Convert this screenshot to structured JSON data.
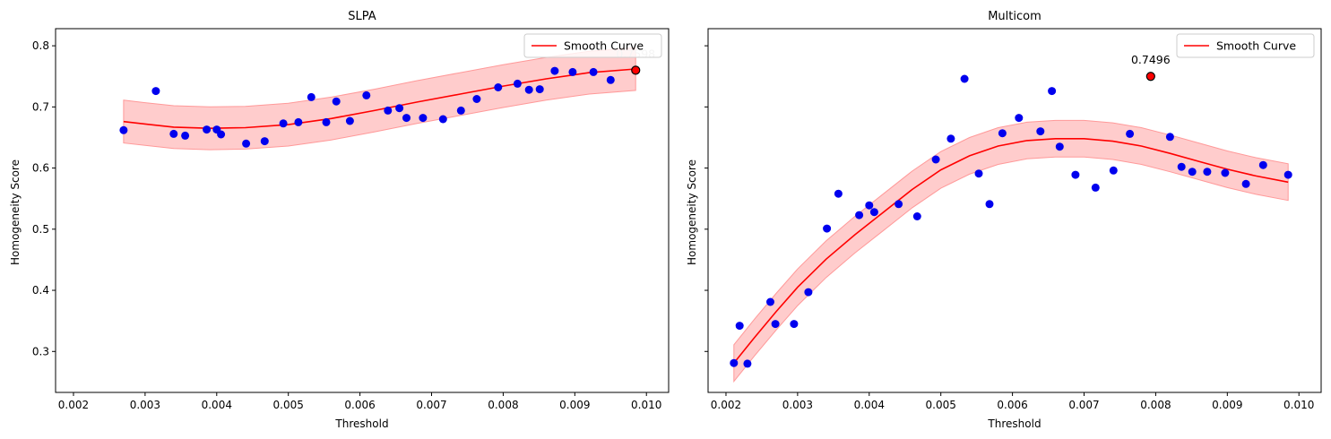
{
  "chart_data": [
    {
      "type": "scatter",
      "title": "SLPA",
      "xlabel": "Threshold",
      "ylabel": "Homogeneity Score",
      "xlim": [
        0.00175,
        0.01031
      ],
      "ylim": [
        0.233,
        0.828
      ],
      "xticks": [
        "0.002",
        "0.003",
        "0.004",
        "0.005",
        "0.006",
        "0.007",
        "0.008",
        "0.009",
        "0.010"
      ],
      "xtick_values": [
        0.002,
        0.003,
        0.004,
        0.005,
        0.006,
        0.007,
        0.008,
        0.009,
        0.01
      ],
      "yticks": [
        "0.3",
        "0.4",
        "0.5",
        "0.6",
        "0.7",
        "0.8"
      ],
      "ytick_values": [
        0.3,
        0.4,
        0.5,
        0.6,
        0.7,
        0.8
      ],
      "points": {
        "x": [
          0.0027,
          0.00315,
          0.0034,
          0.00356,
          0.00386,
          0.004,
          0.00406,
          0.00441,
          0.00467,
          0.00493,
          0.00514,
          0.00532,
          0.00553,
          0.00567,
          0.00586,
          0.00609,
          0.00639,
          0.00655,
          0.00665,
          0.00688,
          0.00716,
          0.00741,
          0.00763,
          0.00793,
          0.0082,
          0.00836,
          0.00851,
          0.00872,
          0.00897,
          0.00926,
          0.0095,
          0.00985
        ],
        "y": [
          0.662,
          0.726,
          0.656,
          0.653,
          0.663,
          0.663,
          0.655,
          0.64,
          0.644,
          0.673,
          0.675,
          0.716,
          0.675,
          0.709,
          0.677,
          0.719,
          0.694,
          0.698,
          0.682,
          0.682,
          0.68,
          0.694,
          0.713,
          0.732,
          0.738,
          0.728,
          0.729,
          0.759,
          0.757,
          0.757,
          0.744,
          0.76
        ]
      },
      "point_color": "#0000ee",
      "smooth": {
        "name": "Smooth Curve",
        "color": "#ff0000",
        "band_color": "#ff9999",
        "band_halfwidth": 0.035,
        "x": [
          0.0027,
          0.003,
          0.0034,
          0.0039,
          0.0044,
          0.005,
          0.0056,
          0.0062,
          0.0068,
          0.0074,
          0.008,
          0.0086,
          0.0092,
          0.00985
        ],
        "y": [
          0.676,
          0.672,
          0.667,
          0.665,
          0.666,
          0.671,
          0.681,
          0.694,
          0.708,
          0.721,
          0.734,
          0.746,
          0.756,
          0.762
        ]
      },
      "highlight": {
        "x": 0.00985,
        "y": 0.76,
        "label": "0.7598",
        "label_color": "#c8c8c8"
      },
      "legend": {
        "label": "Smooth Curve",
        "position": "upper-right"
      }
    },
    {
      "type": "scatter",
      "title": "Multicom",
      "xlabel": "Threshold",
      "ylabel": "Homogeneity Score",
      "xlim": [
        0.00175,
        0.01031
      ],
      "ylim": [
        0.233,
        0.828
      ],
      "xticks": [
        "0.002",
        "0.003",
        "0.004",
        "0.005",
        "0.006",
        "0.007",
        "0.008",
        "0.009",
        "0.010"
      ],
      "xtick_values": [
        0.002,
        0.003,
        0.004,
        0.005,
        0.006,
        0.007,
        0.008,
        0.009,
        0.01
      ],
      "yticks": [
        "0.3",
        "0.4",
        "0.5",
        "0.6",
        "0.7",
        "0.8"
      ],
      "ytick_values": [
        0.3,
        0.4,
        0.5,
        0.6,
        0.7,
        0.8
      ],
      "points": {
        "x": [
          0.00211,
          0.00219,
          0.0023,
          0.00262,
          0.00269,
          0.00295,
          0.00315,
          0.00341,
          0.00357,
          0.00386,
          0.004,
          0.00407,
          0.00441,
          0.00467,
          0.00493,
          0.00514,
          0.00533,
          0.00553,
          0.00568,
          0.00586,
          0.00609,
          0.00639,
          0.00655,
          0.00666,
          0.00688,
          0.00716,
          0.00741,
          0.00764,
          0.00793,
          0.0082,
          0.00836,
          0.00851,
          0.00872,
          0.00897,
          0.00926,
          0.0095,
          0.00985
        ],
        "y": [
          0.281,
          0.342,
          0.28,
          0.381,
          0.345,
          0.345,
          0.397,
          0.501,
          0.558,
          0.523,
          0.539,
          0.528,
          0.541,
          0.521,
          0.614,
          0.648,
          0.746,
          0.591,
          0.541,
          0.657,
          0.682,
          0.66,
          0.726,
          0.635,
          0.589,
          0.568,
          0.596,
          0.656,
          0.75,
          0.651,
          0.602,
          0.594,
          0.594,
          0.592,
          0.574,
          0.605,
          0.589
        ]
      },
      "point_color": "#0000ee",
      "smooth": {
        "name": "Smooth Curve",
        "color": "#ff0000",
        "band_color": "#ff9999",
        "band_halfwidth": 0.03,
        "x": [
          0.00211,
          0.0024,
          0.0027,
          0.003,
          0.0034,
          0.0038,
          0.0042,
          0.0046,
          0.005,
          0.0054,
          0.0058,
          0.0062,
          0.0066,
          0.007,
          0.0074,
          0.0078,
          0.0082,
          0.0086,
          0.009,
          0.0094,
          0.00985
        ],
        "y": [
          0.281,
          0.323,
          0.365,
          0.405,
          0.451,
          0.491,
          0.528,
          0.565,
          0.597,
          0.62,
          0.636,
          0.645,
          0.648,
          0.648,
          0.644,
          0.636,
          0.624,
          0.611,
          0.598,
          0.587,
          0.577
        ]
      },
      "highlight": {
        "x": 0.00793,
        "y": 0.75,
        "label": "0.7496",
        "label_color": "#000000"
      },
      "legend": {
        "label": "Smooth Curve",
        "position": "upper-right"
      }
    }
  ]
}
